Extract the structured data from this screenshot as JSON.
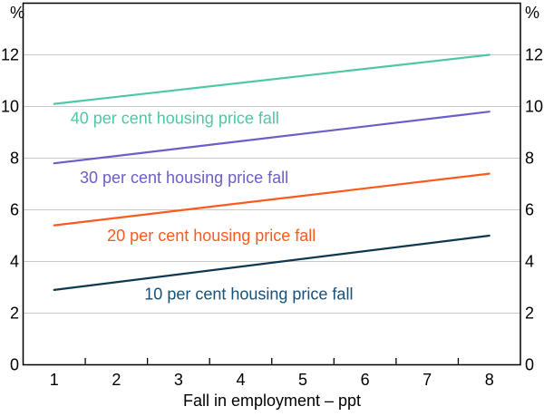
{
  "chart_data": {
    "type": "line",
    "title": "",
    "xlabel": "Fall in employment – ppt",
    "ylabel_left": "%",
    "ylabel_right": "%",
    "xlim": [
      0.5,
      8.5
    ],
    "ylim": [
      0,
      14
    ],
    "x_tick_labels": [
      "1",
      "2",
      "3",
      "4",
      "5",
      "6",
      "7",
      "8"
    ],
    "x_tick_marks": [
      1.5,
      2.5,
      3.5,
      4.5,
      5.5,
      6.5,
      7.5
    ],
    "y_tick_values": [
      0,
      2,
      4,
      6,
      8,
      10,
      12
    ],
    "gridline_values": [
      2,
      4,
      6,
      8,
      10,
      12
    ],
    "grid": "horizontal",
    "legend_position": "inline-labels",
    "axis_color": "#000000",
    "gridline_color": "#c8c8c8",
    "series": [
      {
        "name": "40 per cent housing price fall",
        "color": "#4ec7a6",
        "label_color": "#4ec7a6",
        "x": [
          1,
          8
        ],
        "y": [
          10.1,
          12.0
        ],
        "label_x": 2.94,
        "label_y": 9.55
      },
      {
        "name": "30 per cent housing price fall",
        "color": "#6a5ec8",
        "label_color": "#6a5ec8",
        "x": [
          1,
          8
        ],
        "y": [
          7.8,
          9.8
        ],
        "label_x": 3.09,
        "label_y": 7.25
      },
      {
        "name": "20 per cent housing price fall",
        "color": "#fb5a1e",
        "label_color": "#fb5a1e",
        "x": [
          1,
          8
        ],
        "y": [
          5.4,
          7.4
        ],
        "label_x": 3.53,
        "label_y": 5.0
      },
      {
        "name": "10 per cent housing price fall",
        "color": "#0e384e",
        "label_color": "#175078",
        "x": [
          1,
          8
        ],
        "y": [
          2.9,
          5.0
        ],
        "label_x": 4.13,
        "label_y": 2.73
      }
    ]
  }
}
